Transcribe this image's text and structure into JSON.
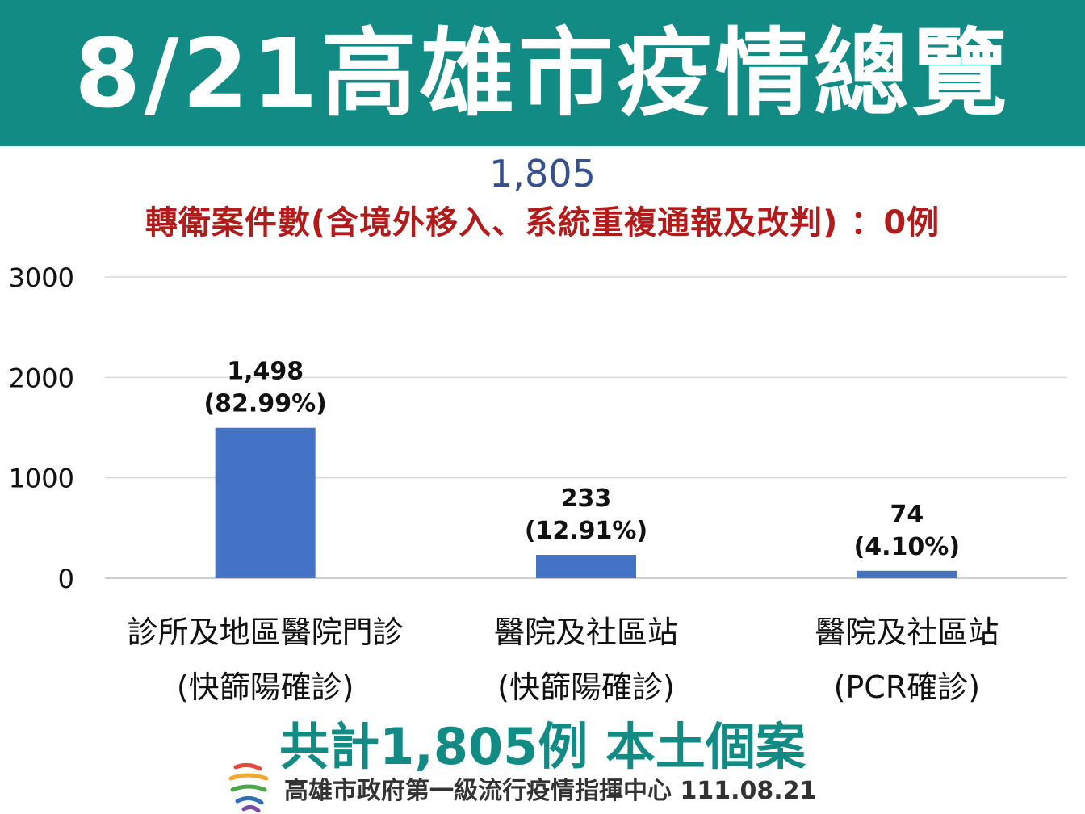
{
  "header": {
    "title": "8/21高雄市疫情總覽"
  },
  "total_top": "1,805",
  "note": "轉衛案件數(含境外移入、系統重複通報及改判) ：0例",
  "summary": "共計1,805例 本土個案",
  "footer": {
    "text": "高雄市政府第一級流行疫情指揮中心 111.08.21"
  },
  "colors": {
    "header_bg": "#138b85",
    "bar": "#4472c4",
    "note": "#b31b1b",
    "total": "#34508f",
    "summary": "#138b85"
  },
  "icons": {
    "logo": "kaohsiung-city-logo"
  },
  "chart_data": {
    "type": "bar",
    "categories": [
      [
        "診所及地區醫院門診",
        "(快篩陽確診)"
      ],
      [
        "醫院及社區站",
        "(快篩陽確診)"
      ],
      [
        "醫院及社區站",
        "(PCR確診)"
      ]
    ],
    "values": [
      1498,
      233,
      74
    ],
    "value_labels": [
      "1,498",
      "233",
      "74"
    ],
    "percent_labels": [
      "(82.99%)",
      "(12.91%)",
      "(4.10%)"
    ],
    "yticks": [
      0,
      1000,
      2000,
      3000
    ],
    "ylim": [
      0,
      3000
    ],
    "grid": true
  }
}
